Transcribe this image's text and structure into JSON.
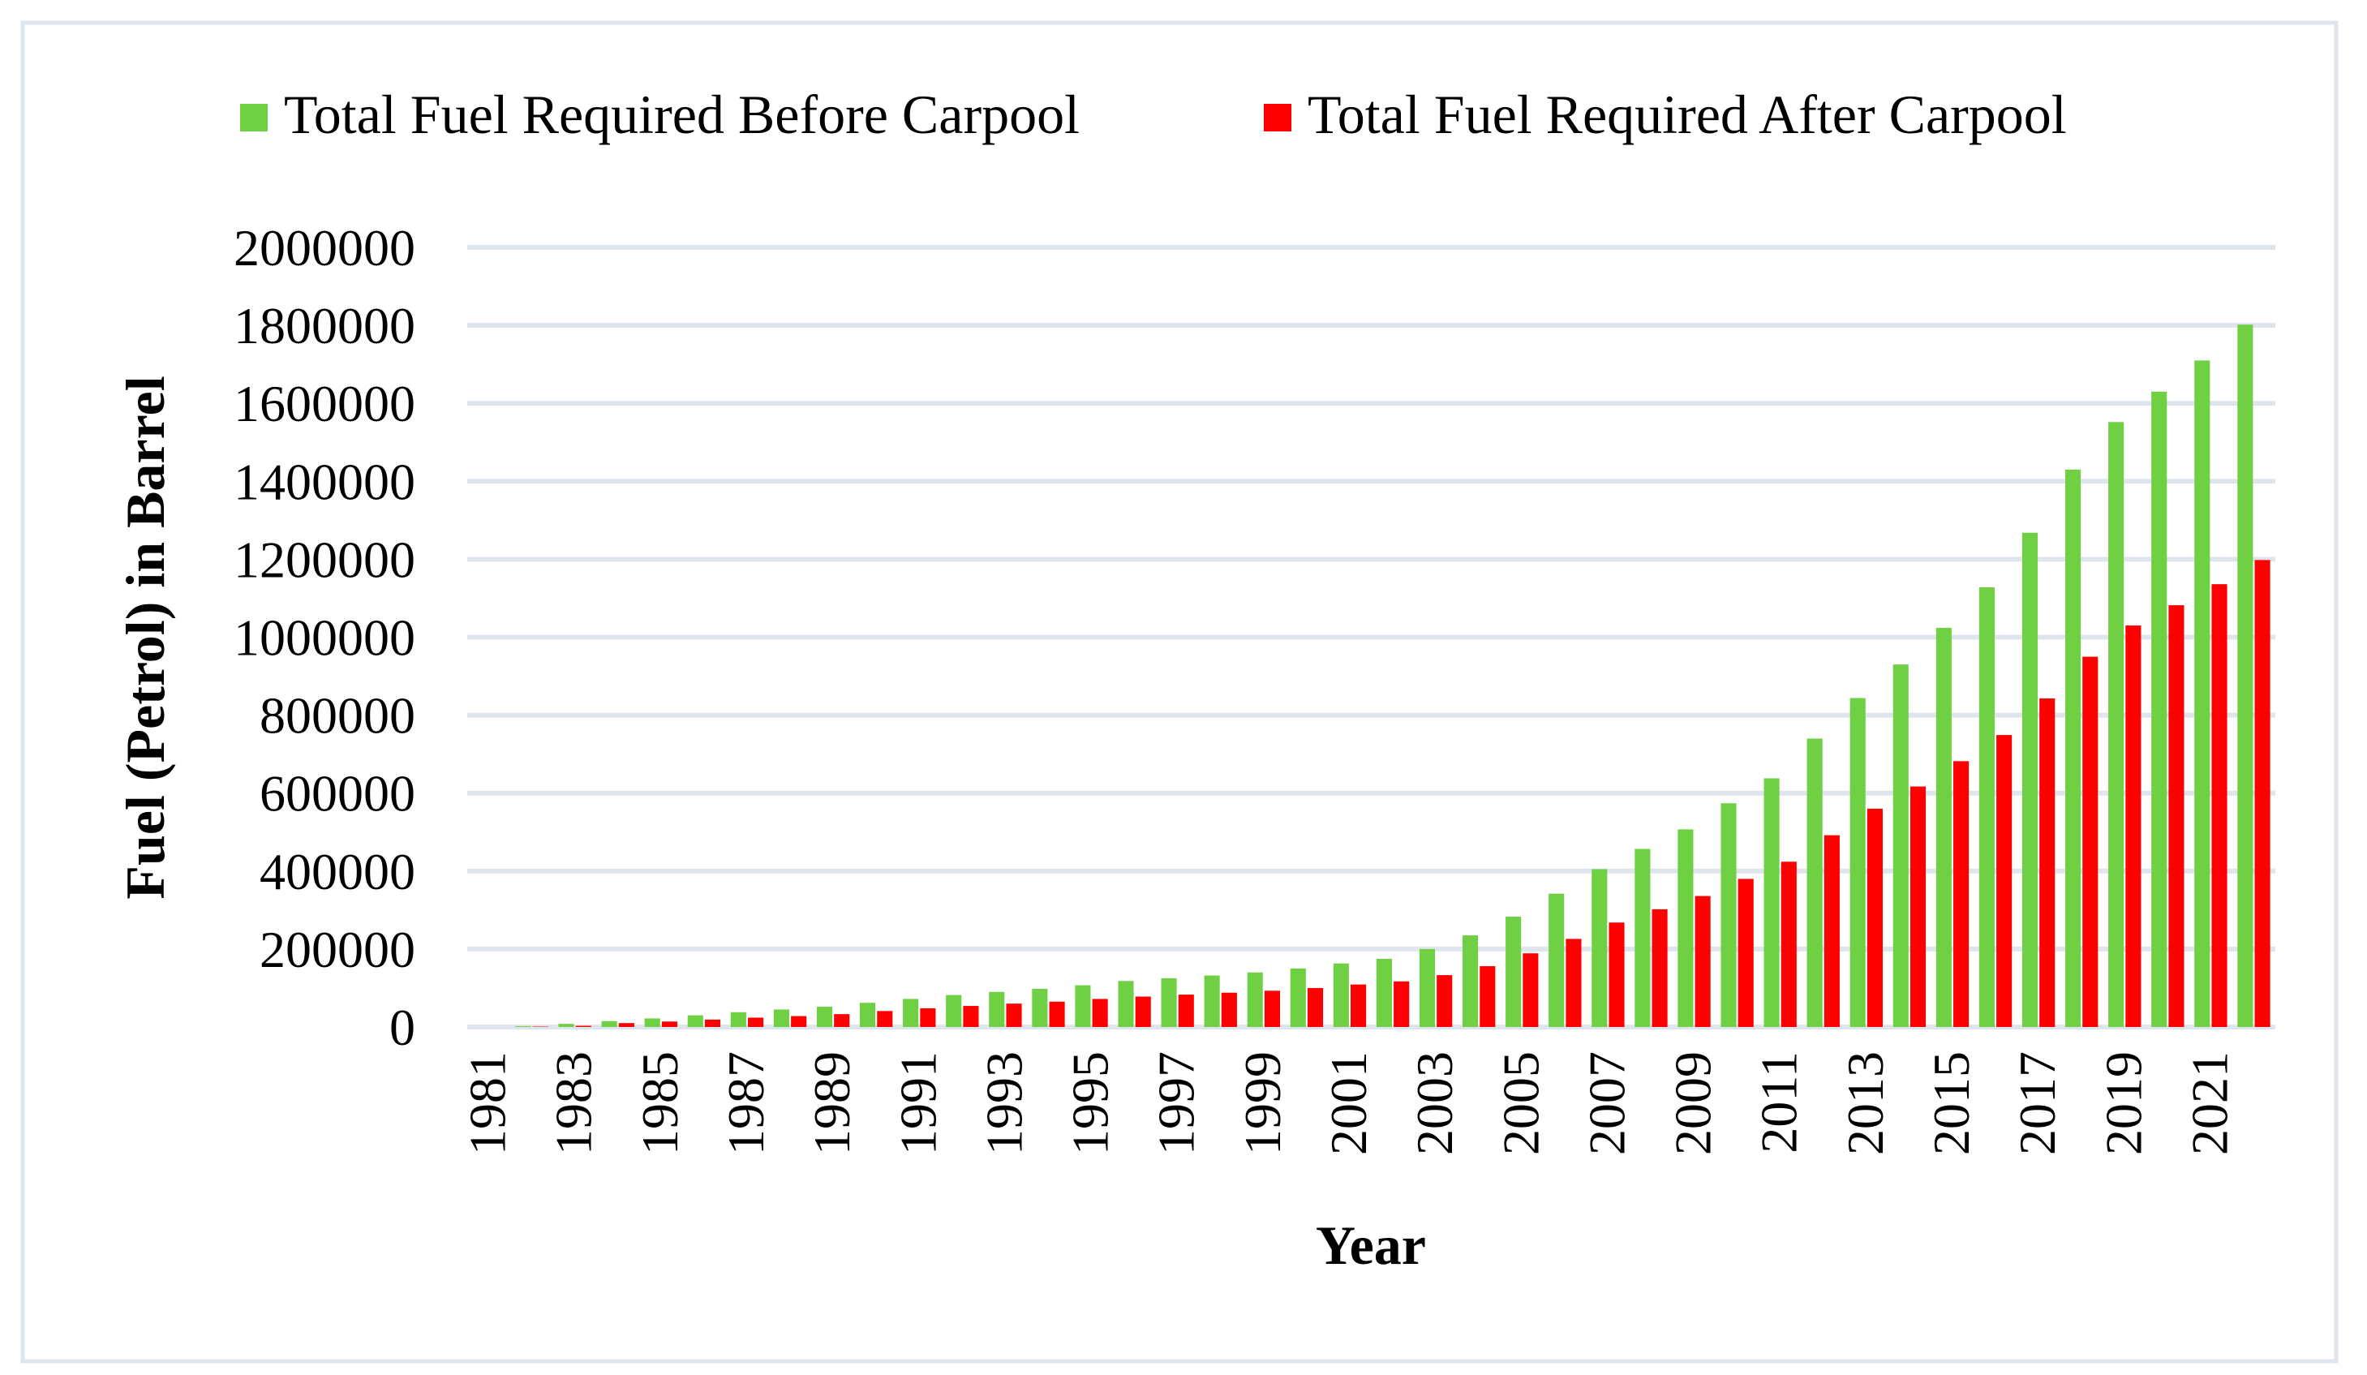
{
  "chart_data": {
    "type": "bar",
    "title": "",
    "xlabel": "Year",
    "ylabel": "Fuel (Petrol) in  Barrel",
    "ylim": [
      0,
      2000000
    ],
    "yticks": [
      0,
      200000,
      400000,
      600000,
      800000,
      1000000,
      1200000,
      1400000,
      1600000,
      1800000,
      2000000
    ],
    "grid": true,
    "legend_position": "top",
    "categories": [
      "1981",
      "1982",
      "1983",
      "1984",
      "1985",
      "1986",
      "1987",
      "1988",
      "1989",
      "1990",
      "1991",
      "1992",
      "1993",
      "1994",
      "1995",
      "1996",
      "1997",
      "1998",
      "1999",
      "2000",
      "2001",
      "2002",
      "2003",
      "2004",
      "2005",
      "2006",
      "2007",
      "2008",
      "2009",
      "2010",
      "2011",
      "2012",
      "2013",
      "2014",
      "2015",
      "2016",
      "2017",
      "2018",
      "2019",
      "2020",
      "2021",
      "2022"
    ],
    "xtick_labels": [
      "1981",
      "1983",
      "1985",
      "1987",
      "1989",
      "1991",
      "1993",
      "1995",
      "1997",
      "1999",
      "2001",
      "2003",
      "2005",
      "2007",
      "2009",
      "2011",
      "2013",
      "2015",
      "2017",
      "2019",
      "2021"
    ],
    "series": [
      {
        "name": "Total Fuel Required Before Carpool",
        "color": "#70d044",
        "values": [
          0,
          2000,
          8000,
          15000,
          22000,
          30000,
          38000,
          45000,
          52000,
          62000,
          72000,
          82000,
          90000,
          98000,
          107000,
          118000,
          125000,
          132000,
          140000,
          150000,
          163000,
          175000,
          200000,
          235000,
          283000,
          342000,
          405000,
          457000,
          507000,
          574000,
          638000,
          740000,
          844000,
          930000,
          1024000,
          1128000,
          1268000,
          1430000,
          1552000,
          1630000,
          1710000,
          1802000
        ]
      },
      {
        "name": "Total Fuel Required After Carpool",
        "color": "#ff0000",
        "values": [
          0,
          1000,
          3000,
          10000,
          14000,
          19000,
          24000,
          28000,
          33000,
          41000,
          48000,
          54000,
          60000,
          65000,
          72000,
          78000,
          83000,
          88000,
          93000,
          100000,
          109000,
          117000,
          133000,
          156000,
          189000,
          226000,
          268000,
          302000,
          336000,
          380000,
          424000,
          492000,
          560000,
          617000,
          682000,
          749000,
          843000,
          950000,
          1030000,
          1082000,
          1136000,
          1198000
        ]
      }
    ]
  },
  "colors": {
    "grid": "#dfe5ec",
    "frame": "#dfe5ec"
  }
}
